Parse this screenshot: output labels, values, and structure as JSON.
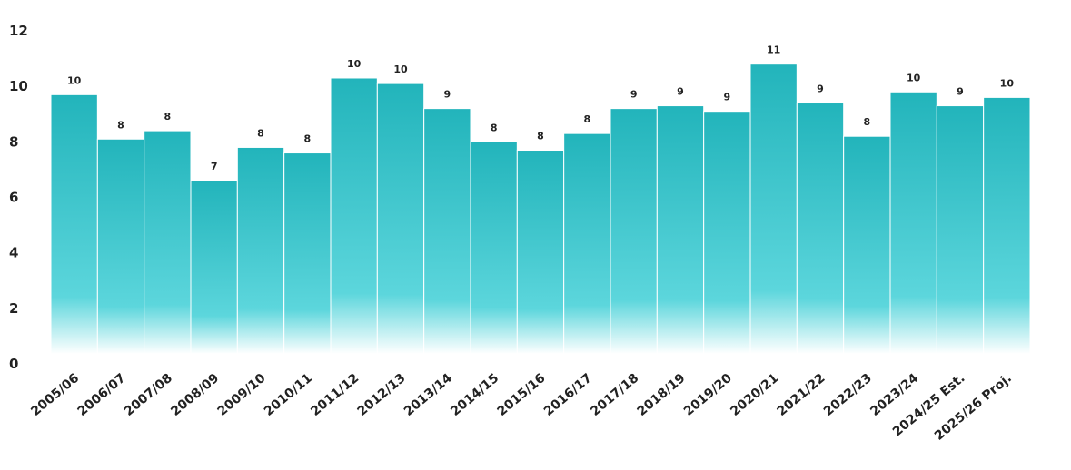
{
  "chart_data": {
    "type": "bar",
    "categories": [
      "2005/06",
      "2006/07",
      "2007/08",
      "2008/09",
      "2009/10",
      "2010/11",
      "2011/12",
      "2012/13",
      "2013/14",
      "2014/15",
      "2015/16",
      "2016/17",
      "2017/18",
      "2018/19",
      "2019/20",
      "2020/21",
      "2021/22",
      "2022/23",
      "2023/24",
      "2024/25 Est.",
      "2025/26 Proj."
    ],
    "values": [
      9.7,
      8.1,
      8.4,
      6.6,
      7.8,
      7.6,
      10.3,
      10.1,
      9.2,
      8.0,
      7.7,
      8.3,
      9.2,
      9.3,
      9.1,
      10.8,
      9.4,
      8.2,
      9.8,
      9.3,
      9.6
    ],
    "data_labels": [
      "10",
      "8",
      "8",
      "7",
      "8",
      "8",
      "10",
      "10",
      "9",
      "8",
      "8",
      "8",
      "9",
      "9",
      "9",
      "11",
      "9",
      "8",
      "10",
      "9",
      "10"
    ],
    "yticks": [
      "0",
      "2",
      "4",
      "6",
      "8",
      "10",
      "12"
    ],
    "title": "",
    "xlabel": "",
    "ylabel": "",
    "ylim": [
      0,
      12
    ],
    "grid": false,
    "legend": "none",
    "colors": {
      "bar_top": "#22b4bb",
      "bar_mid": "#5cd6dc",
      "bar_bottom": "#ffffff"
    }
  }
}
